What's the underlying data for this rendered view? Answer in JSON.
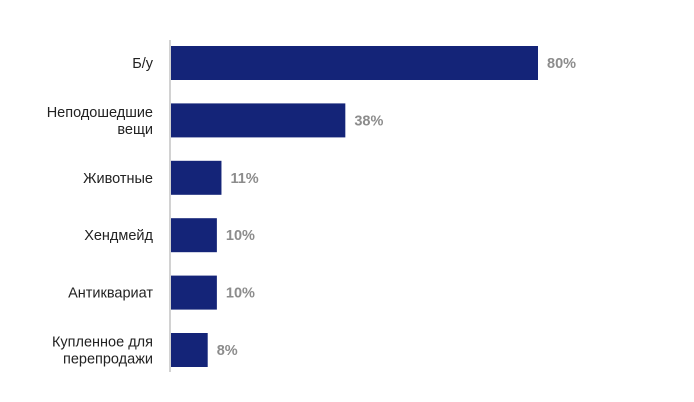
{
  "chart_data": {
    "type": "bar",
    "orientation": "horizontal",
    "categories": [
      [
        "Б/у"
      ],
      [
        "Неподошедшие",
        "вещи"
      ],
      [
        "Животные"
      ],
      [
        "Хендмейд"
      ],
      [
        "Антиквариат"
      ],
      [
        "Купленное для",
        "перепродажи"
      ]
    ],
    "values": [
      80,
      38,
      11,
      10,
      10,
      8
    ],
    "value_labels": [
      "80%",
      "38%",
      "11%",
      "10%",
      "10%",
      "8%"
    ],
    "xlim": [
      0,
      80
    ],
    "grid": false,
    "legend": "none",
    "colors": {
      "bar": "#142478",
      "axis": "#a6a6a6",
      "value_text": "#8c8c8c"
    }
  }
}
